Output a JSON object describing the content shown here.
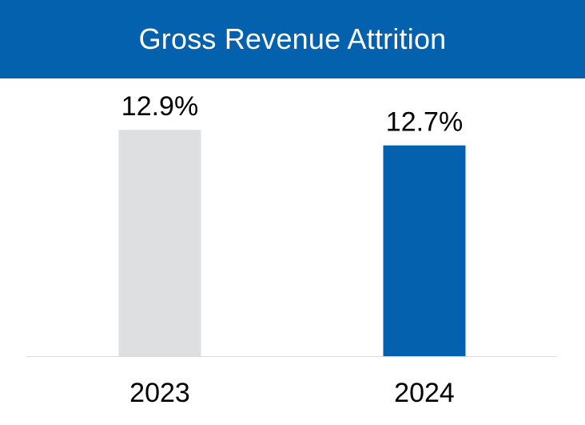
{
  "header": {
    "title": "Gross Revenue Attrition"
  },
  "chart_data": {
    "type": "bar",
    "title": "Gross Revenue Attrition",
    "categories": [
      "2023",
      "2024"
    ],
    "values": [
      12.9,
      12.7
    ],
    "value_labels": [
      "12.9%",
      "12.7%"
    ],
    "xlabel": "",
    "ylabel": "",
    "ylim": [
      10.0,
      13.25
    ],
    "grid": false,
    "legend": "none",
    "colors": [
      "#dedfe1",
      "#0461ad"
    ],
    "axis_color": "#d9d9d9",
    "title_bg": "#0461ad"
  }
}
